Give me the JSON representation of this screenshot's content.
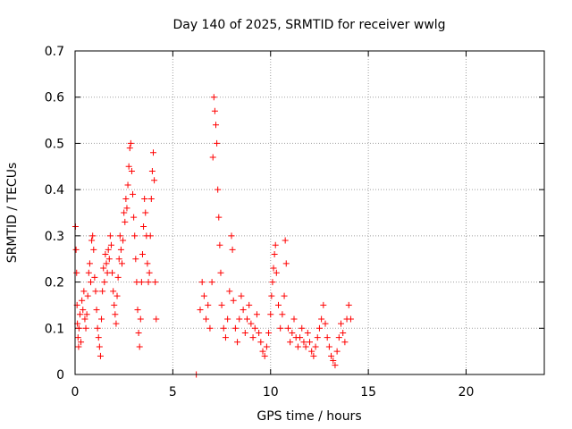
{
  "chart_data": {
    "type": "scatter",
    "title": "Day 140 of 2025, SRMTID for receiver wwlg",
    "xlabel": "GPS time / hours",
    "ylabel": "SRMTID / TECUs",
    "xlim": [
      0,
      24
    ],
    "ylim": [
      0,
      0.7
    ],
    "xticks": [
      0,
      5,
      10,
      15,
      20
    ],
    "xtick_labels": [
      "0",
      "5",
      "10",
      "15",
      "20"
    ],
    "yticks": [
      0,
      0.1,
      0.2,
      0.3,
      0.4,
      0.5,
      0.6,
      0.7
    ],
    "ytick_labels": [
      "0",
      "0.1",
      "0.2",
      "0.3",
      "0.4",
      "0.5",
      "0.6",
      "0.7"
    ],
    "grid": true,
    "marker": "plus",
    "color": "#ff0000",
    "series": [
      {
        "name": "SRMTID",
        "points": [
          [
            0.02,
            0.32
          ],
          [
            0.05,
            0.27
          ],
          [
            0.08,
            0.22
          ],
          [
            0.1,
            0.15
          ],
          [
            0.12,
            0.11
          ],
          [
            0.15,
            0.08
          ],
          [
            0.18,
            0.06
          ],
          [
            0.2,
            0.1
          ],
          [
            0.25,
            0.13
          ],
          [
            0.3,
            0.07
          ],
          [
            0.35,
            0.16
          ],
          [
            0.4,
            0.14
          ],
          [
            0.45,
            0.18
          ],
          [
            0.5,
            0.12
          ],
          [
            0.55,
            0.1
          ],
          [
            0.6,
            0.13
          ],
          [
            0.65,
            0.17
          ],
          [
            0.7,
            0.22
          ],
          [
            0.75,
            0.24
          ],
          [
            0.8,
            0.2
          ],
          [
            0.85,
            0.29
          ],
          [
            0.9,
            0.3
          ],
          [
            0.95,
            0.27
          ],
          [
            1.0,
            0.21
          ],
          [
            1.05,
            0.18
          ],
          [
            1.1,
            0.14
          ],
          [
            1.15,
            0.1
          ],
          [
            1.2,
            0.08
          ],
          [
            1.25,
            0.06
          ],
          [
            1.3,
            0.04
          ],
          [
            1.35,
            0.12
          ],
          [
            1.4,
            0.18
          ],
          [
            1.45,
            0.23
          ],
          [
            1.5,
            0.2
          ],
          [
            1.55,
            0.26
          ],
          [
            1.6,
            0.24
          ],
          [
            1.65,
            0.22
          ],
          [
            1.7,
            0.27
          ],
          [
            1.75,
            0.25
          ],
          [
            1.8,
            0.3
          ],
          [
            1.85,
            0.28
          ],
          [
            1.9,
            0.22
          ],
          [
            1.95,
            0.18
          ],
          [
            2.0,
            0.15
          ],
          [
            2.05,
            0.13
          ],
          [
            2.1,
            0.11
          ],
          [
            2.15,
            0.17
          ],
          [
            2.2,
            0.21
          ],
          [
            2.25,
            0.25
          ],
          [
            2.3,
            0.3
          ],
          [
            2.35,
            0.27
          ],
          [
            2.4,
            0.24
          ],
          [
            2.45,
            0.29
          ],
          [
            2.5,
            0.35
          ],
          [
            2.55,
            0.33
          ],
          [
            2.6,
            0.38
          ],
          [
            2.65,
            0.36
          ],
          [
            2.7,
            0.41
          ],
          [
            2.75,
            0.45
          ],
          [
            2.8,
            0.49
          ],
          [
            2.85,
            0.5
          ],
          [
            2.9,
            0.44
          ],
          [
            2.95,
            0.39
          ],
          [
            3.0,
            0.34
          ],
          [
            3.05,
            0.3
          ],
          [
            3.1,
            0.25
          ],
          [
            3.15,
            0.2
          ],
          [
            3.2,
            0.14
          ],
          [
            3.25,
            0.09
          ],
          [
            3.3,
            0.06
          ],
          [
            3.35,
            0.12
          ],
          [
            3.4,
            0.2
          ],
          [
            3.45,
            0.26
          ],
          [
            3.5,
            0.32
          ],
          [
            3.55,
            0.38
          ],
          [
            3.6,
            0.35
          ],
          [
            3.65,
            0.3
          ],
          [
            3.7,
            0.24
          ],
          [
            3.75,
            0.2
          ],
          [
            3.8,
            0.22
          ],
          [
            3.85,
            0.3
          ],
          [
            3.9,
            0.38
          ],
          [
            3.95,
            0.44
          ],
          [
            4.0,
            0.48
          ],
          [
            4.05,
            0.42
          ],
          [
            4.1,
            0.2
          ],
          [
            4.15,
            0.12
          ],
          [
            6.2,
            0.0
          ],
          [
            6.4,
            0.14
          ],
          [
            6.5,
            0.2
          ],
          [
            6.6,
            0.17
          ],
          [
            6.7,
            0.12
          ],
          [
            6.8,
            0.15
          ],
          [
            6.9,
            0.1
          ],
          [
            7.0,
            0.2
          ],
          [
            7.05,
            0.47
          ],
          [
            7.1,
            0.6
          ],
          [
            7.15,
            0.57
          ],
          [
            7.2,
            0.54
          ],
          [
            7.25,
            0.5
          ],
          [
            7.3,
            0.4
          ],
          [
            7.35,
            0.34
          ],
          [
            7.4,
            0.28
          ],
          [
            7.45,
            0.22
          ],
          [
            7.5,
            0.15
          ],
          [
            7.6,
            0.1
          ],
          [
            7.7,
            0.08
          ],
          [
            7.8,
            0.12
          ],
          [
            7.9,
            0.18
          ],
          [
            8.0,
            0.3
          ],
          [
            8.05,
            0.27
          ],
          [
            8.1,
            0.16
          ],
          [
            8.2,
            0.1
          ],
          [
            8.3,
            0.07
          ],
          [
            8.4,
            0.12
          ],
          [
            8.5,
            0.17
          ],
          [
            8.6,
            0.14
          ],
          [
            8.7,
            0.09
          ],
          [
            8.8,
            0.12
          ],
          [
            8.9,
            0.15
          ],
          [
            9.0,
            0.11
          ],
          [
            9.1,
            0.08
          ],
          [
            9.2,
            0.1
          ],
          [
            9.3,
            0.13
          ],
          [
            9.4,
            0.09
          ],
          [
            9.5,
            0.07
          ],
          [
            9.6,
            0.05
          ],
          [
            9.7,
            0.04
          ],
          [
            9.8,
            0.06
          ],
          [
            9.9,
            0.09
          ],
          [
            10.0,
            0.13
          ],
          [
            10.05,
            0.17
          ],
          [
            10.1,
            0.2
          ],
          [
            10.15,
            0.23
          ],
          [
            10.2,
            0.26
          ],
          [
            10.25,
            0.28
          ],
          [
            10.3,
            0.22
          ],
          [
            10.4,
            0.15
          ],
          [
            10.5,
            0.1
          ],
          [
            10.6,
            0.13
          ],
          [
            10.7,
            0.17
          ],
          [
            10.75,
            0.29
          ],
          [
            10.8,
            0.24
          ],
          [
            10.9,
            0.1
          ],
          [
            11.0,
            0.07
          ],
          [
            11.1,
            0.09
          ],
          [
            11.2,
            0.12
          ],
          [
            11.3,
            0.08
          ],
          [
            11.4,
            0.06
          ],
          [
            11.5,
            0.08
          ],
          [
            11.6,
            0.1
          ],
          [
            11.7,
            0.07
          ],
          [
            11.8,
            0.06
          ],
          [
            11.9,
            0.09
          ],
          [
            12.0,
            0.07
          ],
          [
            12.1,
            0.05
          ],
          [
            12.2,
            0.04
          ],
          [
            12.3,
            0.06
          ],
          [
            12.4,
            0.08
          ],
          [
            12.5,
            0.1
          ],
          [
            12.6,
            0.12
          ],
          [
            12.7,
            0.15
          ],
          [
            12.8,
            0.11
          ],
          [
            12.9,
            0.08
          ],
          [
            13.0,
            0.06
          ],
          [
            13.1,
            0.04
          ],
          [
            13.2,
            0.03
          ],
          [
            13.3,
            0.02
          ],
          [
            13.4,
            0.05
          ],
          [
            13.5,
            0.08
          ],
          [
            13.6,
            0.11
          ],
          [
            13.7,
            0.09
          ],
          [
            13.8,
            0.07
          ],
          [
            13.9,
            0.12
          ],
          [
            14.0,
            0.15
          ],
          [
            14.1,
            0.12
          ]
        ]
      }
    ]
  }
}
